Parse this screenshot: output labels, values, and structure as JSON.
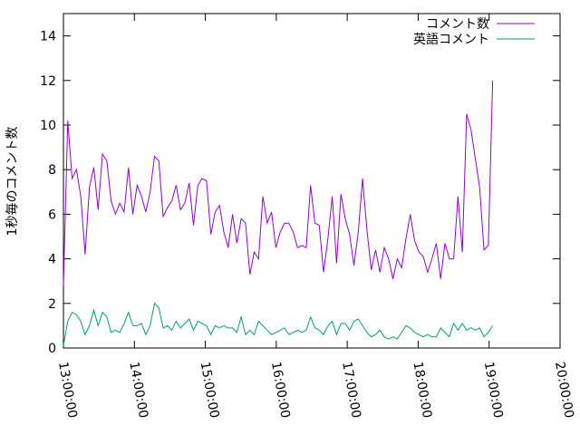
{
  "chart_data": {
    "type": "line",
    "y_label": "1秒毎のコメント数",
    "x": [
      "13:00:00",
      "13:03:40",
      "13:07:20",
      "13:11:00",
      "13:14:40",
      "13:18:20",
      "13:22:00",
      "13:25:40",
      "13:29:20",
      "13:33:00",
      "13:36:40",
      "13:40:20",
      "13:44:00",
      "13:47:40",
      "13:51:20",
      "13:55:00",
      "13:58:40",
      "14:02:20",
      "14:06:00",
      "14:09:40",
      "14:13:20",
      "14:17:00",
      "14:20:40",
      "14:24:20",
      "14:28:00",
      "14:31:40",
      "14:35:20",
      "14:39:00",
      "14:42:40",
      "14:46:20",
      "14:50:00",
      "14:53:40",
      "14:57:20",
      "15:01:00",
      "15:04:40",
      "15:08:20",
      "15:12:00",
      "15:15:40",
      "15:19:20",
      "15:23:00",
      "15:26:40",
      "15:30:20",
      "15:34:00",
      "15:37:40",
      "15:41:20",
      "15:45:00",
      "15:48:40",
      "15:52:20",
      "15:56:00",
      "15:59:40",
      "16:03:20",
      "16:07:00",
      "16:10:40",
      "16:14:20",
      "16:18:00",
      "16:21:40",
      "16:25:20",
      "16:29:00",
      "16:32:40",
      "16:36:20",
      "16:40:00",
      "16:43:40",
      "16:47:20",
      "16:51:00",
      "16:54:40",
      "16:58:20",
      "17:02:00",
      "17:05:40",
      "17:09:20",
      "17:13:00",
      "17:16:40",
      "17:20:20",
      "17:24:00",
      "17:27:40",
      "17:31:20",
      "17:35:00",
      "17:38:40",
      "17:42:20",
      "17:46:00",
      "17:49:40",
      "17:53:20",
      "17:57:00",
      "18:00:40",
      "18:04:20",
      "18:08:00",
      "18:11:40",
      "18:15:20",
      "18:19:00",
      "18:22:40",
      "18:26:20",
      "18:30:00",
      "18:33:40",
      "18:37:20",
      "18:41:00",
      "18:44:40",
      "18:48:20",
      "18:52:00",
      "18:55:40",
      "18:59:20",
      "19:03:00"
    ],
    "series": [
      {
        "name": "コメント数",
        "color": "#9400d3",
        "values": [
          2.8,
          10.2,
          7.6,
          8.0,
          6.8,
          4.2,
          7.2,
          8.1,
          6.2,
          8.7,
          8.4,
          6.6,
          6.0,
          6.5,
          6.1,
          8.1,
          6.0,
          7.3,
          6.8,
          6.1,
          7.0,
          8.6,
          8.4,
          5.9,
          6.3,
          6.6,
          7.3,
          6.2,
          6.5,
          7.4,
          5.5,
          7.3,
          7.6,
          7.5,
          5.1,
          6.1,
          6.4,
          5.2,
          4.5,
          6.0,
          4.7,
          5.8,
          5.6,
          3.3,
          4.3,
          4.0,
          6.8,
          5.6,
          6.1,
          4.5,
          5.2,
          5.6,
          5.6,
          5.2,
          4.5,
          4.6,
          4.5,
          7.3,
          5.6,
          5.5,
          3.4,
          4.9,
          6.8,
          3.8,
          6.9,
          5.8,
          5.1,
          3.7,
          5.2,
          7.6,
          5.3,
          3.5,
          4.4,
          3.4,
          4.5,
          4.0,
          3.1,
          4.0,
          3.6,
          4.9,
          6.0,
          4.8,
          4.3,
          4.1,
          3.4,
          4.0,
          4.7,
          3.1,
          4.7,
          4.0,
          4.0,
          6.8,
          4.3,
          10.5,
          9.8,
          8.5,
          7.2,
          4.4,
          4.6,
          12.0
        ]
      },
      {
        "name": "英語コメント",
        "color": "#009e73",
        "values": [
          0.1,
          1.2,
          1.6,
          1.5,
          1.2,
          0.6,
          1.0,
          1.7,
          1.0,
          1.6,
          1.4,
          0.7,
          0.8,
          0.7,
          1.1,
          1.6,
          1.0,
          1.0,
          1.1,
          0.6,
          1.0,
          2.0,
          1.8,
          0.9,
          1.0,
          0.8,
          1.2,
          0.9,
          1.1,
          1.3,
          0.8,
          1.2,
          1.1,
          1.0,
          0.6,
          1.0,
          0.9,
          1.0,
          0.9,
          0.9,
          0.7,
          1.4,
          0.6,
          0.8,
          0.6,
          1.2,
          1.0,
          0.8,
          0.6,
          0.7,
          0.8,
          0.9,
          0.6,
          0.7,
          0.8,
          0.7,
          0.8,
          1.4,
          0.9,
          0.8,
          0.6,
          1.0,
          1.2,
          0.6,
          1.1,
          1.1,
          0.8,
          1.2,
          1.3,
          1.0,
          0.7,
          0.5,
          0.6,
          0.8,
          0.5,
          0.4,
          0.5,
          0.4,
          0.7,
          1.0,
          0.9,
          0.7,
          0.6,
          0.5,
          0.6,
          0.5,
          0.5,
          0.9,
          0.7,
          0.5,
          1.1,
          0.8,
          1.1,
          0.8,
          0.9,
          0.8,
          0.9,
          0.5,
          0.7,
          1.0
        ]
      }
    ],
    "xlim": [
      "13:00:00",
      "20:00:00"
    ],
    "xticks": [
      "13:00:00",
      "14:00:00",
      "15:00:00",
      "16:00:00",
      "17:00:00",
      "18:00:00",
      "19:00:00",
      "20:00:00"
    ],
    "ylim": [
      0,
      15
    ],
    "yticks": [
      0,
      2,
      4,
      6,
      8,
      10,
      12,
      14
    ],
    "legend": "top-right"
  }
}
